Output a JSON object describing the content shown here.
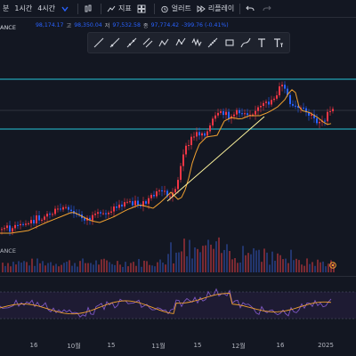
{
  "toolbar": {
    "interval_minutes_suffix": "분",
    "interval_1h": "1시간",
    "interval_4h": "4시간",
    "indicators_label": "지표",
    "alert_label": "얼러트",
    "replay_label": "리플레이"
  },
  "ohlc": {
    "exchange_suffix": "ANCE",
    "open_value": "98,174.17",
    "high_key": "고",
    "high_value": "98,350.04",
    "low_key": "저",
    "low_value": "97,532.58",
    "close_key": "종",
    "close_value": "97,774.42",
    "change_value": "-399.76 (-0.41%)"
  },
  "volume": {
    "label": "ANCE"
  },
  "time_axis": {
    "ticks": [
      "16",
      "10월",
      "15",
      "11월",
      "15",
      "12월",
      "16",
      "2025"
    ]
  },
  "colors": {
    "background": "#131722",
    "up": "#f23645",
    "down": "#2962ff",
    "ma": "#f0a030",
    "trendline": "#fff59d",
    "levels": "#26c6da",
    "rsi_line": "#7e57c2",
    "rsi_ma": "#f0a030"
  },
  "icons": [
    "chart-type-icon",
    "indicators-icon",
    "layout-icon",
    "alert-icon",
    "replay-icon",
    "undo-icon",
    "redo-icon",
    "trendline-tool-icon",
    "ray-tool-icon",
    "extended-line-icon",
    "channel-tool-icon",
    "path-tool-icon",
    "polyline-tool-icon",
    "measure-tool-icon",
    "rectangle-tool-icon",
    "brush-tool-icon",
    "text-tool-icon",
    "text-size-tool-icon",
    "settings-gear-icon"
  ]
}
